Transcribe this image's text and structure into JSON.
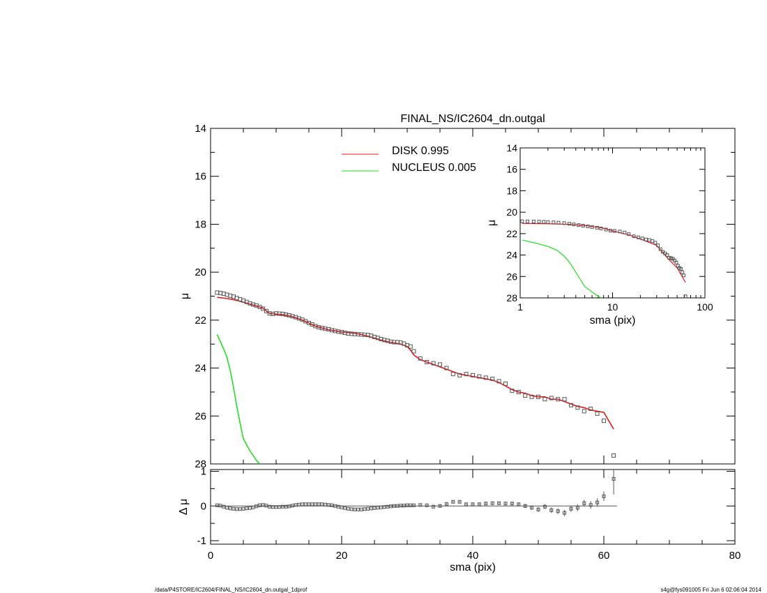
{
  "chart_data": [
    {
      "panel": "main-profile",
      "type": "scatter",
      "title": "FINAL_NS/IC2604_dn.outgal",
      "ylabel": "μ",
      "xlim": [
        0,
        80
      ],
      "ylim": [
        28,
        14
      ],
      "yticks": [
        "14",
        "16",
        "18",
        "20",
        "22",
        "24",
        "26",
        "28"
      ],
      "legend": {
        "placement": "top-center",
        "entries": [
          {
            "label": "DISK  0.995",
            "color": "#e0191b"
          },
          {
            "label": "NUCLEUS  0.005",
            "color": "#22dd22"
          }
        ]
      },
      "series": [
        {
          "name": "data",
          "style": "open-square",
          "color": "#555555",
          "x": [
            1,
            1.5,
            2,
            2.5,
            3,
            3.5,
            4,
            4.5,
            5,
            5.5,
            6,
            6.5,
            7,
            7.5,
            8,
            8.5,
            9,
            9.5,
            10,
            10.5,
            11,
            11.5,
            12,
            12.5,
            13,
            13.5,
            14,
            14.5,
            15,
            15.5,
            16,
            16.5,
            17,
            17.5,
            18,
            18.5,
            19,
            19.5,
            20,
            20.5,
            21,
            21.5,
            22,
            22.5,
            23,
            23.5,
            24,
            24.5,
            25,
            25.5,
            26,
            26.5,
            27,
            27.5,
            28,
            28.5,
            29,
            29.5,
            30,
            30.5,
            31,
            32,
            33,
            34,
            35,
            36,
            37,
            38,
            39,
            40,
            41,
            42,
            43,
            44,
            45,
            46,
            47,
            48,
            49,
            50,
            51,
            52,
            53,
            54,
            55,
            56,
            57,
            58,
            59,
            60,
            61.5
          ],
          "y": [
            20.85,
            20.87,
            20.9,
            20.94,
            20.98,
            21.02,
            21.08,
            21.13,
            21.18,
            21.24,
            21.3,
            21.35,
            21.39,
            21.45,
            21.52,
            21.62,
            21.72,
            21.74,
            21.72,
            21.73,
            21.74,
            21.77,
            21.8,
            21.84,
            21.88,
            21.93,
            21.98,
            22.05,
            22.12,
            22.18,
            22.25,
            22.3,
            22.33,
            22.36,
            22.38,
            22.42,
            22.45,
            22.48,
            22.5,
            22.53,
            22.56,
            22.57,
            22.58,
            22.59,
            22.6,
            22.61,
            22.62,
            22.65,
            22.7,
            22.74,
            22.79,
            22.83,
            22.86,
            22.9,
            22.92,
            22.92,
            22.94,
            22.98,
            23.05,
            23.1,
            23.3,
            23.6,
            23.75,
            23.8,
            23.85,
            24.0,
            24.25,
            24.3,
            24.25,
            24.3,
            24.35,
            24.4,
            24.45,
            24.55,
            24.65,
            24.95,
            25.0,
            25.15,
            25.2,
            25.2,
            25.3,
            25.25,
            25.3,
            25.3,
            25.55,
            25.65,
            25.8,
            25.7,
            25.9,
            26.2,
            27.65
          ]
        },
        {
          "name": "DISK",
          "style": "line",
          "color": "#e0191b",
          "x": [
            1,
            2,
            3,
            4,
            5,
            6,
            7,
            8,
            8.5,
            9,
            10,
            11,
            12,
            13,
            14,
            15,
            16,
            17,
            18,
            19,
            20,
            21,
            22,
            23,
            24,
            25,
            26,
            27,
            28,
            29,
            30,
            30.5,
            31,
            32,
            33,
            34,
            35,
            36,
            37,
            38,
            39,
            40,
            41,
            42,
            43,
            44,
            45,
            46,
            47,
            48,
            49,
            50,
            51,
            52,
            53,
            54,
            55,
            56,
            57,
            58,
            59,
            60,
            61.5
          ],
          "y": [
            21.05,
            21.08,
            21.12,
            21.18,
            21.25,
            21.33,
            21.41,
            21.5,
            21.62,
            21.72,
            21.75,
            21.77,
            21.82,
            21.9,
            22.0,
            22.12,
            22.25,
            22.33,
            22.4,
            22.45,
            22.5,
            22.52,
            22.55,
            22.6,
            22.67,
            22.75,
            22.83,
            22.9,
            22.95,
            23.0,
            23.1,
            23.25,
            23.45,
            23.65,
            23.75,
            23.85,
            23.95,
            24.05,
            24.15,
            24.25,
            24.3,
            24.35,
            24.4,
            24.45,
            24.5,
            24.6,
            24.75,
            24.9,
            25.0,
            25.05,
            25.15,
            25.2,
            25.2,
            25.3,
            25.3,
            25.4,
            25.5,
            25.6,
            25.65,
            25.75,
            25.8,
            25.85,
            26.55
          ]
        },
        {
          "name": "NUCLEUS",
          "style": "line",
          "color": "#22dd22",
          "x": [
            1,
            1.5,
            2,
            2.5,
            3,
            3.5,
            4,
            4.5,
            5,
            5.5,
            6,
            6.5,
            7,
            7.5
          ],
          "y": [
            22.6,
            22.9,
            23.2,
            23.55,
            24.1,
            24.8,
            25.6,
            26.3,
            26.95,
            27.2,
            27.45,
            27.65,
            27.85,
            28.0
          ]
        }
      ]
    },
    {
      "panel": "residuals",
      "type": "scatter",
      "xlabel": "sma (pix)",
      "ylabel": "Δ μ",
      "xlim": [
        0,
        80
      ],
      "ylim": [
        -1.1,
        1.05
      ],
      "xticks": [
        "0",
        "20",
        "40",
        "60",
        "80"
      ],
      "yticks": [
        "1",
        "0",
        "-1"
      ],
      "series": [
        {
          "name": "residual",
          "style": "open-square-with-errorbar",
          "color": "#555555",
          "x": [
            1,
            1.5,
            2,
            2.5,
            3,
            3.5,
            4,
            4.5,
            5,
            5.5,
            6,
            6.5,
            7,
            7.5,
            8,
            8.5,
            9,
            9.5,
            10,
            10.5,
            11,
            11.5,
            12,
            12.5,
            13,
            13.5,
            14,
            14.5,
            15,
            15.5,
            16,
            16.5,
            17,
            17.5,
            18,
            18.5,
            19,
            19.5,
            20,
            20.5,
            21,
            21.5,
            22,
            22.5,
            23,
            23.5,
            24,
            24.5,
            25,
            25.5,
            26,
            26.5,
            27,
            27.5,
            28,
            28.5,
            29,
            29.5,
            30,
            30.5,
            31,
            32,
            33,
            34,
            35,
            36,
            37,
            38,
            39,
            40,
            41,
            42,
            43,
            44,
            45,
            46,
            47,
            48,
            49,
            50,
            51,
            52,
            53,
            54,
            55,
            56,
            57,
            58,
            59,
            60,
            61.5
          ],
          "y": [
            0.02,
            0.01,
            -0.02,
            -0.05,
            -0.07,
            -0.08,
            -0.09,
            -0.09,
            -0.08,
            -0.07,
            -0.06,
            -0.04,
            -0.01,
            0.02,
            0.03,
            0.01,
            -0.02,
            -0.03,
            -0.03,
            -0.03,
            -0.02,
            -0.02,
            -0.01,
            0.01,
            0.03,
            0.04,
            0.05,
            0.05,
            0.05,
            0.05,
            0.05,
            0.05,
            0.05,
            0.04,
            0.03,
            0.02,
            0.0,
            -0.02,
            -0.04,
            -0.06,
            -0.08,
            -0.09,
            -0.1,
            -0.1,
            -0.1,
            -0.09,
            -0.08,
            -0.07,
            -0.06,
            -0.05,
            -0.04,
            -0.03,
            -0.02,
            -0.01,
            0.0,
            0.0,
            0.01,
            0.01,
            0.02,
            0.02,
            0.02,
            0.03,
            0.02,
            -0.02,
            0.0,
            0.06,
            0.12,
            0.12,
            0.05,
            0.05,
            0.05,
            0.07,
            0.08,
            0.08,
            0.07,
            0.07,
            0.05,
            0.0,
            -0.05,
            -0.1,
            -0.02,
            -0.12,
            -0.15,
            -0.2,
            -0.08,
            -0.05,
            0.08,
            0.03,
            0.1,
            0.28,
            0.78
          ],
          "err": [
            0.01,
            0.01,
            0.01,
            0.01,
            0.01,
            0.01,
            0.01,
            0.01,
            0.01,
            0.01,
            0.01,
            0.01,
            0.01,
            0.01,
            0.01,
            0.01,
            0.01,
            0.01,
            0.01,
            0.01,
            0.01,
            0.01,
            0.01,
            0.01,
            0.01,
            0.01,
            0.01,
            0.01,
            0.01,
            0.01,
            0.01,
            0.01,
            0.01,
            0.01,
            0.01,
            0.01,
            0.01,
            0.01,
            0.01,
            0.01,
            0.01,
            0.01,
            0.01,
            0.01,
            0.01,
            0.01,
            0.01,
            0.01,
            0.01,
            0.01,
            0.01,
            0.01,
            0.01,
            0.01,
            0.01,
            0.01,
            0.01,
            0.01,
            0.01,
            0.01,
            0.02,
            0.02,
            0.02,
            0.02,
            0.03,
            0.03,
            0.03,
            0.03,
            0.03,
            0.03,
            0.03,
            0.04,
            0.04,
            0.04,
            0.04,
            0.05,
            0.05,
            0.06,
            0.06,
            0.07,
            0.07,
            0.08,
            0.08,
            0.09,
            0.09,
            0.1,
            0.1,
            0.11,
            0.12,
            0.14,
            0.45
          ]
        },
        {
          "name": "zero-line",
          "style": "line",
          "color": "#555555",
          "x": [
            0,
            62
          ],
          "y": [
            0,
            0
          ]
        }
      ]
    },
    {
      "panel": "inset-log-profile",
      "type": "scatter",
      "xlabel": "sma (pix)",
      "ylabel": "μ",
      "xscale": "log",
      "xlim": [
        1,
        100
      ],
      "ylim": [
        28,
        14
      ],
      "xticks": [
        "1",
        "10",
        "100"
      ],
      "yticks": [
        "14",
        "16",
        "18",
        "20",
        "22",
        "24",
        "26",
        "28"
      ],
      "series": [
        {
          "name": "data",
          "style": "open-square",
          "color": "#555555",
          "x": [
            1.05,
            1.2,
            1.4,
            1.6,
            1.8,
            2,
            2.3,
            2.6,
            3,
            3.4,
            3.8,
            4.3,
            4.8,
            5.4,
            6,
            6.8,
            7.5,
            8.5,
            9.5,
            10.5,
            12,
            13.5,
            15,
            17,
            19,
            21,
            23,
            25,
            27,
            29,
            31,
            33,
            35,
            37,
            39,
            41,
            43,
            45,
            47,
            49,
            51,
            53,
            55,
            57,
            59,
            61.5
          ],
          "y": [
            20.85,
            20.86,
            20.87,
            20.88,
            20.9,
            20.92,
            20.95,
            20.98,
            21.02,
            21.08,
            21.14,
            21.2,
            21.26,
            21.32,
            21.38,
            21.45,
            21.52,
            21.62,
            21.72,
            21.75,
            21.8,
            21.9,
            22.05,
            22.25,
            22.35,
            22.45,
            22.55,
            22.6,
            22.7,
            22.85,
            23.1,
            23.45,
            23.7,
            23.85,
            24.0,
            24.25,
            24.3,
            24.35,
            24.5,
            24.7,
            25.0,
            25.2,
            25.3,
            25.6,
            25.9,
            27.85
          ]
        },
        {
          "name": "DISK",
          "style": "line",
          "color": "#e0191b",
          "x": [
            1.05,
            2,
            3,
            4,
            5,
            6,
            7,
            8,
            10,
            15,
            20,
            30,
            40,
            50,
            61.5
          ],
          "y": [
            21.05,
            21.08,
            21.12,
            21.18,
            21.25,
            21.33,
            21.41,
            21.5,
            21.75,
            22.12,
            22.5,
            23.1,
            24.35,
            25.2,
            26.55
          ]
        },
        {
          "name": "NUCLEUS",
          "style": "line",
          "color": "#22dd22",
          "x": [
            1.05,
            1.5,
            2,
            2.5,
            3,
            3.5,
            4,
            4.5,
            5,
            5.5,
            6,
            6.5,
            7,
            7.5
          ],
          "y": [
            22.6,
            22.9,
            23.2,
            23.55,
            24.1,
            24.8,
            25.6,
            26.3,
            26.95,
            27.2,
            27.45,
            27.65,
            27.85,
            28.0
          ]
        }
      ]
    }
  ],
  "footer": {
    "path": "/data/P4STORE/IC2604/FINAL_NS/IC2604_dn.outgal_1dprof",
    "stamp": "s4g@fys091005  Fri Jun  6 02:06:04 2014"
  }
}
